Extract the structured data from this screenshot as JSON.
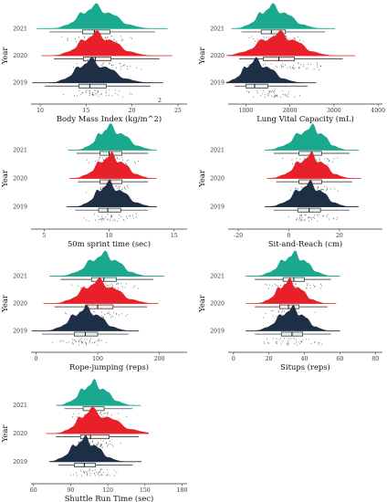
{
  "chart_data": [
    {
      "type": "raincloud",
      "xlabel": "Body Mass Index (kg/m^2)",
      "ylabel": "Year",
      "categories": [
        "2021",
        "2020",
        "2019"
      ],
      "xlim": [
        9,
        26
      ],
      "xticks": [
        10,
        15,
        20,
        25
      ],
      "stray_label": "2",
      "series": [
        {
          "values": {
            "min": 11,
            "q1": 14.6,
            "median": 15.9,
            "q3": 17.6,
            "max": 22.5
          }
        },
        {
          "values": {
            "min": 11.5,
            "q1": 14.7,
            "median": 16.0,
            "q3": 17.7,
            "max": 23
          }
        },
        {
          "values": {
            "min": 10.5,
            "q1": 14.2,
            "median": 15.4,
            "q3": 17.2,
            "max": 22
          }
        }
      ]
    },
    {
      "type": "raincloud",
      "xlabel": "Lung Vital Capacity (mL)",
      "ylabel": "Year",
      "categories": [
        "2021",
        "2020",
        "2019"
      ],
      "xlim": [
        600,
        4100
      ],
      "xticks": [
        1000,
        2000,
        3000,
        4000
      ],
      "series": [
        {
          "values": {
            "min": 900,
            "q1": 1350,
            "median": 1580,
            "q3": 1900,
            "max": 2800
          }
        },
        {
          "values": {
            "min": 850,
            "q1": 1400,
            "median": 1750,
            "q3": 2100,
            "max": 3200
          }
        },
        {
          "values": {
            "min": 750,
            "q1": 1000,
            "median": 1200,
            "q3": 1500,
            "max": 2400
          }
        }
      ]
    },
    {
      "type": "raincloud",
      "xlabel": "50m sprint time (sec)",
      "ylabel": "Year",
      "categories": [
        "2021",
        "2020",
        "2019"
      ],
      "xlim": [
        4,
        16
      ],
      "xticks": [
        5,
        10,
        15
      ],
      "series": [
        {
          "values": {
            "min": 7.5,
            "q1": 9.3,
            "median": 10.0,
            "q3": 11.0,
            "max": 13
          }
        },
        {
          "values": {
            "min": 7.6,
            "q1": 9.3,
            "median": 10.1,
            "q3": 11.0,
            "max": 13
          }
        },
        {
          "values": {
            "min": 7.4,
            "q1": 9.2,
            "median": 9.9,
            "q3": 10.9,
            "max": 13
          }
        }
      ]
    },
    {
      "type": "raincloud",
      "xlabel": "Sit-and-Reach (cm)",
      "ylabel": "Year",
      "categories": [
        "2021",
        "2020",
        "2019"
      ],
      "xlim": [
        -24,
        37
      ],
      "xticks": [
        -20,
        0,
        20
      ],
      "series": [
        {
          "values": {
            "min": -6,
            "q1": 4,
            "median": 9,
            "q3": 13,
            "max": 24
          }
        },
        {
          "values": {
            "min": -5,
            "q1": 4,
            "median": 8.5,
            "q3": 13,
            "max": 25
          }
        },
        {
          "values": {
            "min": -6,
            "q1": 3.5,
            "median": 8,
            "q3": 12.5,
            "max": 24
          }
        }
      ]
    },
    {
      "type": "raincloud",
      "xlabel": "Rope-jumping (reps)",
      "ylabel": "Year",
      "categories": [
        "2021",
        "2020",
        "2019"
      ],
      "xlim": [
        -8,
        245
      ],
      "xticks": [
        0,
        100,
        200
      ],
      "series": [
        {
          "values": {
            "min": 40,
            "q1": 90,
            "median": 110,
            "q3": 130,
            "max": 190
          }
        },
        {
          "values": {
            "min": 30,
            "q1": 80,
            "median": 100,
            "q3": 125,
            "max": 180
          }
        },
        {
          "values": {
            "min": 10,
            "q1": 62,
            "median": 80,
            "q3": 100,
            "max": 150
          }
        }
      ]
    },
    {
      "type": "raincloud",
      "xlabel": "Situps (reps)",
      "ylabel": "Year",
      "categories": [
        "2021",
        "2020",
        "2019"
      ],
      "xlim": [
        -3,
        84
      ],
      "xticks": [
        0,
        20,
        40,
        60,
        80
      ],
      "series": [
        {
          "values": {
            "min": 12,
            "q1": 28,
            "median": 34,
            "q3": 40,
            "max": 55
          }
        },
        {
          "values": {
            "min": 12,
            "q1": 26,
            "median": 31,
            "q3": 37,
            "max": 53
          }
        },
        {
          "values": {
            "min": 12,
            "q1": 27,
            "median": 33,
            "q3": 39,
            "max": 55
          }
        }
      ]
    },
    {
      "type": "raincloud",
      "xlabel": "Shuttle Run Time (sec)",
      "ylabel": "Year",
      "categories": [
        "2021",
        "2020",
        "2019"
      ],
      "xlim": [
        58,
        184
      ],
      "xticks": [
        60,
        90,
        120,
        150,
        180
      ],
      "series": [
        {
          "values": {
            "min": 85,
            "q1": 100,
            "median": 108,
            "q3": 117,
            "max": 140
          }
        },
        {
          "values": {
            "min": 78,
            "q1": 98,
            "median": 106,
            "q3": 121,
            "max": 145
          }
        },
        {
          "values": {
            "min": 80,
            "q1": 93,
            "median": 101,
            "q3": 110,
            "max": 140
          }
        }
      ]
    }
  ],
  "colors": {
    "2021": "#1aa98e",
    "2020": "#e8202a",
    "2019": "#1e2e45",
    "accent_2020": "#e060e8",
    "accent_2021": "#8fe8f8"
  }
}
